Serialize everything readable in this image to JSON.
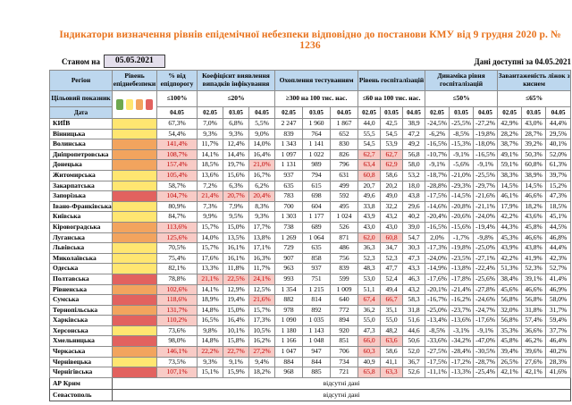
{
  "title": "Індикатори визначення рівнів епідемічної небезпеки відповідно до постанови КМУ від 9 грудня 2020 р. № 1236",
  "colors": {
    "accent_title": "#E8721C",
    "header_bg": "#BDD7EE",
    "highlight_bg": "#F8CBC6",
    "highlight_text": "#C00000"
  },
  "meta": {
    "as_of_label": "Станом на",
    "as_of_value": "05.05.2021",
    "available_label": "Дані доступні за 04.05.2021"
  },
  "table": {
    "columns": {
      "region": "Регіон",
      "level": "Рівень епіднебезпеки",
      "pct": "% від епідпорогу",
      "coef": "Коефіцієнт виявлення випадків інфікування",
      "test": "Охоплення тестуванням",
      "hosp": "Рівень госпіталізацій",
      "dyn": "Динаміка рівня госпіталізацій",
      "beds": "Завантаженість ліжок з киснем"
    },
    "target_row_label": "Цільовий показник",
    "date_row_label": "Дата",
    "targets": {
      "pct": "≤100%",
      "coef": "≤20%",
      "test": "≥300 на 100 тис. нас.",
      "hosp": "≤60 на 100 тис. нас.",
      "dyn": "≤50%",
      "beds": "≤65%"
    },
    "dates": {
      "pct": "04.05",
      "group": [
        "02.05",
        "03.05",
        "04.05"
      ],
      "group_count": 5
    },
    "level_colors": {
      "green": "#6EA84F",
      "yellow": "#FFE671",
      "orange": "#F2A45E",
      "red": "#E2625F"
    },
    "no_data_text": "відсутні дані",
    "rows": [
      {
        "region": "КИЇВ",
        "level": "yellow",
        "values": [
          "67,3%",
          "7,0%",
          "6,8%",
          "5,5%",
          "2 247",
          "1 960",
          "1 867",
          "44,0",
          "42,5",
          "38,9",
          "-24,5%",
          "-25,5%",
          "-27,2%",
          "42,9%",
          "43,0%",
          "44,4%"
        ],
        "hl": []
      },
      {
        "region": "Вінницька",
        "level": "yellow",
        "values": [
          "54,4%",
          "9,3%",
          "9,3%",
          "9,0%",
          "839",
          "764",
          "652",
          "55,5",
          "54,5",
          "47,2",
          "-6,2%",
          "-8,5%",
          "-19,8%",
          "28,2%",
          "28,7%",
          "29,5%"
        ],
        "hl": []
      },
      {
        "region": "Волинська",
        "level": "orange",
        "values": [
          "141,4%",
          "11,7%",
          "12,4%",
          "14,0%",
          "1 343",
          "1 141",
          "830",
          "54,5",
          "53,9",
          "49,2",
          "-16,5%",
          "-15,3%",
          "-18,0%",
          "38,7%",
          "39,2%",
          "40,1%"
        ],
        "hl": [
          0
        ]
      },
      {
        "region": "Дніпропетровська",
        "level": "orange",
        "values": [
          "108,7%",
          "14,1%",
          "14,4%",
          "16,4%",
          "1 097",
          "1 022",
          "826",
          "62,7",
          "62,7",
          "56,8",
          "-10,7%",
          "-9,1%",
          "-16,5%",
          "49,1%",
          "50,3%",
          "52,0%"
        ],
        "hl": [
          0,
          7,
          8
        ]
      },
      {
        "region": "Донецька",
        "level": "orange",
        "values": [
          "157,4%",
          "18,5%",
          "19,7%",
          "21,0%",
          "1 131",
          "989",
          "796",
          "63,4",
          "62,9",
          "58,0",
          "-9,1%",
          "-5,6%",
          "-9,1%",
          "59,1%",
          "60,8%",
          "61,3%"
        ],
        "hl": [
          0,
          3,
          7,
          8
        ]
      },
      {
        "region": "Житомирська",
        "level": "yellow",
        "values": [
          "105,4%",
          "13,6%",
          "15,6%",
          "16,7%",
          "937",
          "794",
          "631",
          "60,8",
          "58,6",
          "53,2",
          "-18,7%",
          "-21,0%",
          "-25,5%",
          "38,3%",
          "38,9%",
          "39,7%"
        ],
        "hl": [
          0,
          7
        ]
      },
      {
        "region": "Закарпатська",
        "level": "yellow",
        "values": [
          "58,7%",
          "7,2%",
          "6,3%",
          "6,2%",
          "635",
          "615",
          "499",
          "20,7",
          "20,2",
          "18,0",
          "-28,8%",
          "-29,3%",
          "-29,7%",
          "14,5%",
          "14,5%",
          "15,2%"
        ],
        "hl": []
      },
      {
        "region": "Запорізька",
        "level": "red",
        "values": [
          "104,7%",
          "21,4%",
          "20,7%",
          "20,4%",
          "783",
          "698",
          "592",
          "49,6",
          "49,0",
          "43,8",
          "-17,5%",
          "-14,5%",
          "-21,6%",
          "46,1%",
          "46,6%",
          "47,3%"
        ],
        "hl": [
          0,
          1,
          2,
          3
        ]
      },
      {
        "region": "Івано-Франківська",
        "level": "yellow",
        "values": [
          "80,9%",
          "7,3%",
          "7,9%",
          "8,3%",
          "700",
          "604",
          "495",
          "33,8",
          "32,2",
          "29,6",
          "-14,6%",
          "-20,8%",
          "-21,1%",
          "17,9%",
          "18,2%",
          "18,5%"
        ],
        "hl": []
      },
      {
        "region": "Київська",
        "level": "yellow",
        "values": [
          "84,7%",
          "9,9%",
          "9,5%",
          "9,3%",
          "1 303",
          "1 177",
          "1 024",
          "43,9",
          "43,2",
          "40,2",
          "-20,4%",
          "-20,6%",
          "-24,0%",
          "42,2%",
          "43,6%",
          "45,1%"
        ],
        "hl": []
      },
      {
        "region": "Кіровоградська",
        "level": "orange",
        "values": [
          "113,6%",
          "15,7%",
          "15,0%",
          "17,7%",
          "738",
          "689",
          "526",
          "43,0",
          "43,0",
          "39,0",
          "-16,5%",
          "-15,6%",
          "-19,4%",
          "44,3%",
          "45,8%",
          "44,5%"
        ],
        "hl": [
          0
        ]
      },
      {
        "region": "Луганська",
        "level": "orange",
        "values": [
          "125,6%",
          "14,0%",
          "13,5%",
          "13,8%",
          "1 269",
          "1 064",
          "871",
          "62,0",
          "60,8",
          "54,7",
          "2,0%",
          "-1,7%",
          "-9,8%",
          "45,3%",
          "46,6%",
          "46,8%"
        ],
        "hl": [
          0,
          7,
          8
        ]
      },
      {
        "region": "Львівська",
        "level": "yellow",
        "values": [
          "70,5%",
          "15,7%",
          "16,1%",
          "17,1%",
          "729",
          "635",
          "486",
          "36,3",
          "34,7",
          "30,3",
          "-17,3%",
          "-19,8%",
          "-25,0%",
          "43,9%",
          "43,8%",
          "44,4%"
        ],
        "hl": []
      },
      {
        "region": "Миколаївська",
        "level": "yellow",
        "values": [
          "75,4%",
          "17,6%",
          "16,1%",
          "16,3%",
          "907",
          "858",
          "756",
          "52,3",
          "52,3",
          "47,3",
          "-24,0%",
          "-23,5%",
          "-27,1%",
          "42,2%",
          "41,9%",
          "42,3%"
        ],
        "hl": []
      },
      {
        "region": "Одеська",
        "level": "yellow",
        "values": [
          "82,1%",
          "13,3%",
          "11,8%",
          "11,7%",
          "963",
          "937",
          "839",
          "48,3",
          "47,7",
          "43,3",
          "-14,9%",
          "-13,8%",
          "-22,4%",
          "51,3%",
          "52,3%",
          "52,7%"
        ],
        "hl": []
      },
      {
        "region": "Полтавська",
        "level": "red",
        "values": [
          "78,8%",
          "21,1%",
          "22,5%",
          "24,1%",
          "993",
          "751",
          "599",
          "53,0",
          "52,4",
          "46,3",
          "-17,6%",
          "-17,8%",
          "-25,6%",
          "38,4%",
          "39,1%",
          "41,4%"
        ],
        "hl": [
          1,
          2,
          3
        ]
      },
      {
        "region": "Рівненська",
        "level": "orange",
        "values": [
          "102,6%",
          "14,1%",
          "12,9%",
          "12,5%",
          "1 354",
          "1 215",
          "1 009",
          "51,1",
          "49,4",
          "43,2",
          "-20,1%",
          "-21,4%",
          "-27,8%",
          "45,6%",
          "46,6%",
          "46,9%"
        ],
        "hl": [
          0
        ]
      },
      {
        "region": "Сумська",
        "level": "red",
        "values": [
          "118,6%",
          "18,9%",
          "19,4%",
          "21,6%",
          "882",
          "814",
          "640",
          "67,4",
          "66,7",
          "58,3",
          "-16,7%",
          "-16,2%",
          "-24,6%",
          "56,8%",
          "56,8%",
          "58,0%"
        ],
        "hl": [
          0,
          3,
          7,
          8
        ]
      },
      {
        "region": "Тернопільська",
        "level": "orange",
        "values": [
          "131,7%",
          "14,8%",
          "15,0%",
          "15,7%",
          "978",
          "892",
          "772",
          "36,2",
          "35,1",
          "31,8",
          "-25,0%",
          "-23,7%",
          "-24,7%",
          "32,0%",
          "31,8%",
          "31,7%"
        ],
        "hl": [
          0
        ]
      },
      {
        "region": "Харківська",
        "level": "red",
        "values": [
          "110,2%",
          "16,5%",
          "16,4%",
          "17,3%",
          "1 090",
          "1 035",
          "894",
          "55,0",
          "55,0",
          "51,6",
          "-13,4%",
          "-13,6%",
          "-17,6%",
          "56,8%",
          "57,4%",
          "59,4%"
        ],
        "hl": [
          0
        ]
      },
      {
        "region": "Херсонська",
        "level": "yellow",
        "values": [
          "73,6%",
          "9,8%",
          "10,1%",
          "10,5%",
          "1 180",
          "1 143",
          "920",
          "47,3",
          "48,2",
          "44,6",
          "-8,5%",
          "-3,1%",
          "-9,1%",
          "35,3%",
          "36,6%",
          "37,7%"
        ],
        "hl": []
      },
      {
        "region": "Хмельницька",
        "level": "red",
        "values": [
          "98,0%",
          "14,8%",
          "15,8%",
          "16,2%",
          "1 166",
          "1 048",
          "851",
          "66,0",
          "63,6",
          "50,6",
          "-33,6%",
          "-34,2%",
          "-47,0%",
          "45,8%",
          "46,2%",
          "46,4%"
        ],
        "hl": [
          7,
          8
        ]
      },
      {
        "region": "Черкаська",
        "level": "orange",
        "values": [
          "146,1%",
          "22,2%",
          "22,7%",
          "27,2%",
          "1 047",
          "947",
          "706",
          "60,3",
          "58,6",
          "52,0",
          "-27,5%",
          "-28,4%",
          "-30,5%",
          "39,4%",
          "39,6%",
          "40,2%"
        ],
        "hl": [
          0,
          1,
          2,
          3,
          7
        ]
      },
      {
        "region": "Чернівецька",
        "level": "yellow",
        "values": [
          "73,5%",
          "9,3%",
          "9,1%",
          "9,4%",
          "884",
          "844",
          "734",
          "40,9",
          "41,1",
          "36,7",
          "-17,5%",
          "-17,2%",
          "-28,7%",
          "26,5%",
          "27,6%",
          "28,3%"
        ],
        "hl": []
      },
      {
        "region": "Чернігівська",
        "level": "red",
        "values": [
          "107,1%",
          "15,1%",
          "15,9%",
          "18,2%",
          "968",
          "885",
          "721",
          "65,8",
          "63,3",
          "52,6",
          "-11,1%",
          "-13,3%",
          "-25,4%",
          "42,1%",
          "42,1%",
          "41,6%"
        ],
        "hl": [
          0,
          7,
          8
        ]
      },
      {
        "region": "АР Крим",
        "no_data": true
      },
      {
        "region": "Севастополь",
        "no_data": true
      }
    ]
  }
}
